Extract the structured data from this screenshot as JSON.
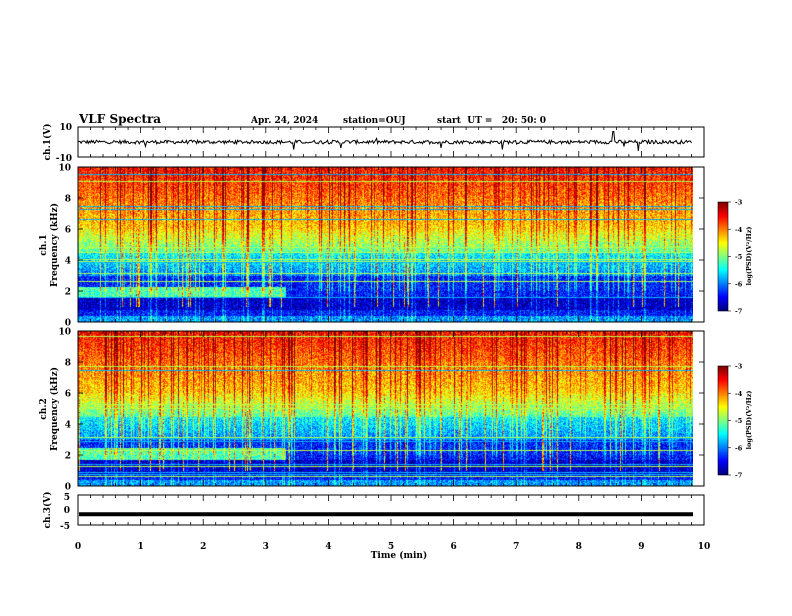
{
  "header": {
    "title": "VLF Spectra",
    "date": "Apr. 24, 2024",
    "station": "station=OUJ",
    "start": "start  UT =   20: 50: 0"
  },
  "chart_data": [
    {
      "type": "line",
      "name": "ch1-waveform",
      "ylabel": "ch.1(V)",
      "ylim": [
        -10,
        10
      ],
      "yticks": [
        "10",
        "-10"
      ],
      "xlim": [
        0,
        10
      ],
      "baseline": 0,
      "noise": 1.2,
      "spikes": [
        {
          "x": 1.08,
          "y": -3
        },
        {
          "x": 3.45,
          "y": -5
        },
        {
          "x": 4.2,
          "y": -4
        },
        {
          "x": 5.8,
          "y": -4
        },
        {
          "x": 6.78,
          "y": -5
        },
        {
          "x": 8.55,
          "y": 7
        },
        {
          "x": 8.72,
          "y": -3
        },
        {
          "x": 8.95,
          "y": -6
        }
      ]
    },
    {
      "type": "heatmap",
      "name": "ch1-spectrogram",
      "ylabel": "Frequency (kHz)",
      "channel_label": "ch.1",
      "xlim": [
        0,
        9.8
      ],
      "ylim": [
        0,
        10
      ],
      "yticks": [
        "0",
        "2",
        "4",
        "6",
        "8",
        "10"
      ],
      "colorbar": {
        "label": "log(PSD)(V²/Hz)",
        "range": [
          -7,
          -3
        ],
        "ticks": [
          "-3",
          "-4",
          "-5",
          "-6",
          "-7"
        ]
      },
      "features": [
        {
          "kind": "emission_band",
          "freq_low_khz": 1.6,
          "freq_high_khz": 2.3,
          "t_end_min": 3.3
        },
        {
          "kind": "quiet_band",
          "freq_low_khz": 0.8,
          "freq_high_khz": 1.6
        }
      ]
    },
    {
      "type": "heatmap",
      "name": "ch2-spectrogram",
      "ylabel": "Frequency (kHz)",
      "channel_label": "ch.2",
      "xlim": [
        0,
        9.8
      ],
      "ylim": [
        0,
        10
      ],
      "yticks": [
        "0",
        "2",
        "4",
        "6",
        "8",
        "10"
      ],
      "colorbar": {
        "label": "log(PSD)(V²/Hz)",
        "range": [
          -7,
          -3
        ],
        "ticks": [
          "-3",
          "-4",
          "-5",
          "-6",
          "-7"
        ]
      },
      "features": [
        {
          "kind": "emission_band",
          "freq_low_khz": 1.7,
          "freq_high_khz": 2.5,
          "t_end_min": 3.3
        },
        {
          "kind": "quiet_band",
          "freq_low_khz": 0.8,
          "freq_high_khz": 1.7
        }
      ]
    },
    {
      "type": "line",
      "name": "ch3-waveform",
      "ylabel": "ch.3(V)",
      "ylim": [
        -5,
        5
      ],
      "yticks": [
        "5",
        "0",
        "-5"
      ],
      "xlim": [
        0,
        10
      ],
      "baseline": -1.4
    }
  ],
  "xaxis": {
    "label": "Time (min)",
    "ticks": [
      "0",
      "1",
      "2",
      "3",
      "4",
      "5",
      "6",
      "7",
      "8",
      "9",
      "10"
    ]
  }
}
